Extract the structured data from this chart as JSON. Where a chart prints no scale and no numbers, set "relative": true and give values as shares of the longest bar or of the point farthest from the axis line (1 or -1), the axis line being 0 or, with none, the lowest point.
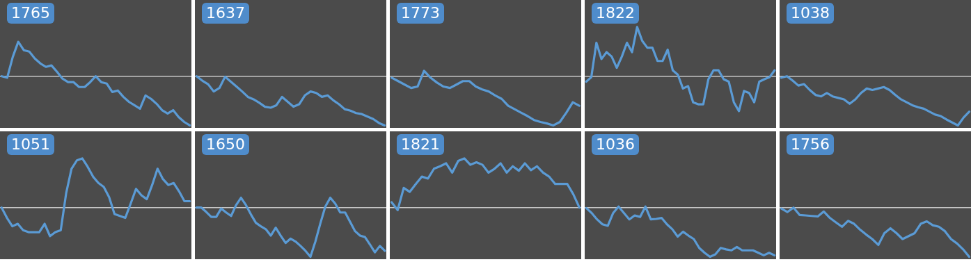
{
  "chart_data": [
    {
      "type": "line",
      "title": "1765",
      "relative": true,
      "ref_lines": [
        {
          "axis": "y",
          "value": 0,
          "color": "#c8c8c8"
        }
      ],
      "categories": [
        null,
        null,
        null,
        null,
        null,
        null,
        null,
        null,
        null,
        null,
        null,
        null,
        null,
        null,
        null,
        null,
        null,
        null,
        null,
        null,
        null,
        null,
        null,
        null,
        null,
        null,
        null,
        null,
        null,
        null,
        null,
        null,
        null,
        null,
        null
      ],
      "series": [
        {
          "color": "#5b9bd5",
          "values": [
            0,
            -0.03,
            0.39,
            0.7,
            0.53,
            0.5,
            0.36,
            0.26,
            0.19,
            0.22,
            0.09,
            -0.05,
            -0.12,
            -0.12,
            -0.22,
            -0.22,
            -0.12,
            0,
            -0.12,
            -0.15,
            -0.32,
            -0.29,
            -0.42,
            -0.52,
            -0.59,
            -0.66,
            -0.39,
            -0.46,
            -0.56,
            -0.69,
            -0.76,
            -0.69,
            -0.83,
            -0.93,
            -1
          ]
        }
      ]
    },
    {
      "type": "line",
      "title": "1637",
      "relative": true,
      "ref_lines": [
        {
          "axis": "y",
          "value": 0,
          "color": "#c8c8c8"
        }
      ],
      "categories": [
        null,
        null,
        null,
        null,
        null,
        null,
        null,
        null,
        null,
        null,
        null,
        null,
        null,
        null,
        null,
        null,
        null,
        null,
        null,
        null,
        null,
        null,
        null,
        null,
        null,
        null,
        null,
        null,
        null,
        null,
        null,
        null,
        null,
        null
      ],
      "series": [
        {
          "color": "#5b9bd5",
          "values": [
            0,
            -0.09,
            -0.16,
            -0.31,
            -0.24,
            -0.01,
            -0.11,
            -0.21,
            -0.31,
            -0.42,
            -0.47,
            -0.54,
            -0.62,
            -0.64,
            -0.59,
            -0.42,
            -0.52,
            -0.62,
            -0.57,
            -0.39,
            -0.31,
            -0.34,
            -0.42,
            -0.39,
            -0.49,
            -0.57,
            -0.67,
            -0.7,
            -0.75,
            -0.77,
            -0.82,
            -0.87,
            -0.95,
            -1
          ]
        }
      ]
    },
    {
      "type": "line",
      "title": "1773",
      "relative": true,
      "ref_lines": [
        {
          "axis": "y",
          "value": 0,
          "color": "#c8c8c8"
        }
      ],
      "categories": [
        null,
        null,
        null,
        null,
        null,
        null,
        null,
        null,
        null,
        null,
        null,
        null,
        null,
        null,
        null,
        null,
        null,
        null,
        null,
        null,
        null,
        null,
        null,
        null,
        null,
        null,
        null,
        null,
        null,
        null
      ],
      "series": [
        {
          "color": "#5b9bd5",
          "values": [
            -0.03,
            -0.1,
            -0.17,
            -0.24,
            -0.21,
            0.11,
            -0.03,
            -0.13,
            -0.21,
            -0.24,
            -0.17,
            -0.1,
            -0.1,
            -0.21,
            -0.27,
            -0.31,
            -0.39,
            -0.46,
            -0.6,
            -0.67,
            -0.74,
            -0.81,
            -0.89,
            -0.93,
            -0.96,
            -1,
            -0.93,
            -0.74,
            -0.53,
            -0.6
          ]
        }
      ]
    },
    {
      "type": "line",
      "title": "1822",
      "relative": true,
      "ref_lines": [
        {
          "axis": "y",
          "value": 0,
          "color": "#c8c8c8"
        }
      ],
      "categories": [
        null,
        null,
        null,
        null,
        null,
        null,
        null,
        null,
        null,
        null,
        null,
        null,
        null,
        null,
        null,
        null,
        null,
        null,
        null,
        null,
        null,
        null,
        null,
        null,
        null,
        null,
        null,
        null,
        null,
        null,
        null,
        null,
        null,
        null,
        null,
        null,
        null,
        null
      ],
      "series": [
        {
          "color": "#5b9bd5",
          "values": [
            -0.11,
            -0.02,
            0.68,
            0.35,
            0.49,
            0.4,
            0.17,
            0.4,
            0.68,
            0.49,
            1,
            0.72,
            0.58,
            0.58,
            0.31,
            0.31,
            0.54,
            0.12,
            0.03,
            -0.25,
            -0.2,
            -0.53,
            -0.57,
            -0.57,
            -0.06,
            0.12,
            0.12,
            -0.06,
            -0.11,
            -0.53,
            -0.71,
            -0.3,
            -0.34,
            -0.53,
            -0.11,
            -0.06,
            -0.02,
            0.12
          ]
        }
      ]
    },
    {
      "type": "line",
      "title": "1038",
      "relative": true,
      "ref_lines": [
        {
          "axis": "y",
          "value": 0,
          "color": "#c8c8c8"
        }
      ],
      "categories": [
        null,
        null,
        null,
        null,
        null,
        null,
        null,
        null,
        null,
        null,
        null,
        null,
        null,
        null,
        null,
        null,
        null,
        null,
        null,
        null,
        null,
        null,
        null,
        null,
        null,
        null,
        null,
        null,
        null,
        null,
        null,
        null,
        null,
        null
      ],
      "series": [
        {
          "color": "#5b9bd5",
          "values": [
            -0.03,
            0,
            -0.09,
            -0.19,
            -0.16,
            -0.28,
            -0.38,
            -0.41,
            -0.34,
            -0.41,
            -0.44,
            -0.47,
            -0.56,
            -0.47,
            -0.34,
            -0.25,
            -0.28,
            -0.25,
            -0.22,
            -0.28,
            -0.38,
            -0.47,
            -0.53,
            -0.59,
            -0.63,
            -0.66,
            -0.72,
            -0.78,
            -0.81,
            -0.88,
            -0.94,
            -1,
            -0.84,
            -0.72
          ]
        }
      ]
    },
    {
      "type": "line",
      "title": "1051",
      "relative": true,
      "ref_lines": [
        {
          "axis": "y",
          "value": 0,
          "color": "#c8c8c8"
        }
      ],
      "categories": [
        null,
        null,
        null,
        null,
        null,
        null,
        null,
        null,
        null,
        null,
        null,
        null,
        null,
        null,
        null,
        null,
        null,
        null,
        null,
        null,
        null,
        null,
        null,
        null,
        null,
        null,
        null,
        null,
        null,
        null,
        null,
        null,
        null,
        null,
        null,
        null
      ],
      "series": [
        {
          "color": "#5b9bd5",
          "values": [
            0,
            -0.21,
            -0.38,
            -0.33,
            -0.46,
            -0.5,
            -0.5,
            -0.5,
            -0.33,
            -0.58,
            -0.5,
            -0.46,
            0.29,
            0.79,
            0.96,
            1,
            0.83,
            0.63,
            0.5,
            0.42,
            0.21,
            -0.13,
            -0.17,
            -0.21,
            0.08,
            0.38,
            0.25,
            0.17,
            0.46,
            0.79,
            0.58,
            0.46,
            0.5,
            0.33,
            0.13,
            0.13
          ]
        }
      ]
    },
    {
      "type": "line",
      "title": "1650",
      "relative": true,
      "ref_lines": [
        {
          "axis": "y",
          "value": 0,
          "color": "#c8c8c8"
        }
      ],
      "categories": [
        null,
        null,
        null,
        null,
        null,
        null,
        null,
        null,
        null,
        null,
        null,
        null,
        null,
        null,
        null,
        null,
        null,
        null,
        null,
        null,
        null,
        null,
        null,
        null,
        null,
        null,
        null,
        null,
        null,
        null,
        null,
        null,
        null,
        null,
        null,
        null,
        null,
        null,
        null
      ],
      "series": [
        {
          "color": "#5b9bd5",
          "values": [
            0,
            0,
            -0.09,
            -0.19,
            -0.19,
            -0.02,
            -0.1,
            -0.17,
            0.05,
            0.2,
            0.05,
            -0.14,
            -0.31,
            -0.38,
            -0.44,
            -0.57,
            -0.41,
            -0.57,
            -0.72,
            -0.63,
            -0.69,
            -0.78,
            -0.88,
            -1,
            -0.69,
            -0.32,
            0.02,
            0.2,
            0.08,
            -0.1,
            -0.1,
            -0.29,
            -0.48,
            -0.57,
            -0.6,
            -0.75,
            -0.91,
            -0.78,
            -0.88
          ]
        }
      ]
    },
    {
      "type": "line",
      "title": "1821",
      "relative": true,
      "ref_lines": [
        {
          "axis": "y",
          "value": 0,
          "color": "#c8c8c8"
        }
      ],
      "categories": [
        null,
        null,
        null,
        null,
        null,
        null,
        null,
        null,
        null,
        null,
        null,
        null,
        null,
        null,
        null,
        null,
        null,
        null,
        null,
        null,
        null,
        null,
        null,
        null,
        null,
        null,
        null,
        null,
        null,
        null,
        null,
        null
      ],
      "series": [
        {
          "color": "#5b9bd5",
          "values": [
            0.11,
            -0.05,
            0.4,
            0.32,
            0.48,
            0.63,
            0.59,
            0.79,
            0.84,
            0.9,
            0.71,
            0.95,
            1,
            0.87,
            0.92,
            0.87,
            0.71,
            0.79,
            0.9,
            0.71,
            0.84,
            0.75,
            0.9,
            0.76,
            0.84,
            0.71,
            0.63,
            0.48,
            0.48,
            0.48,
            0.27,
            0
          ]
        }
      ]
    },
    {
      "type": "line",
      "title": "1036",
      "relative": true,
      "ref_lines": [
        {
          "axis": "y",
          "value": 0,
          "color": "#c8c8c8"
        }
      ],
      "categories": [
        null,
        null,
        null,
        null,
        null,
        null,
        null,
        null,
        null,
        null,
        null,
        null,
        null,
        null,
        null,
        null,
        null,
        null,
        null,
        null,
        null,
        null,
        null,
        null,
        null,
        null,
        null,
        null,
        null,
        null,
        null,
        null,
        null,
        null,
        null,
        null
      ],
      "series": [
        {
          "color": "#5b9bd5",
          "values": [
            -0.01,
            -0.11,
            -0.24,
            -0.34,
            -0.37,
            -0.11,
            0.02,
            -0.11,
            -0.24,
            -0.16,
            -0.19,
            0.02,
            -0.24,
            -0.23,
            -0.21,
            -0.34,
            -0.44,
            -0.59,
            -0.49,
            -0.57,
            -0.64,
            -0.82,
            -0.92,
            -1,
            -0.95,
            -0.82,
            -0.85,
            -0.87,
            -0.8,
            -0.87,
            -0.87,
            -0.87,
            -0.92,
            -0.97,
            -0.92,
            -0.97
          ]
        }
      ]
    },
    {
      "type": "line",
      "title": "1756",
      "relative": true,
      "ref_lines": [
        {
          "axis": "y",
          "value": 0,
          "color": "#c8c8c8"
        }
      ],
      "categories": [
        null,
        null,
        null,
        null,
        null,
        null,
        null,
        null,
        null,
        null,
        null,
        null,
        null,
        null,
        null,
        null,
        null,
        null,
        null,
        null,
        null,
        null,
        null,
        null,
        null,
        null,
        null,
        null,
        null,
        null,
        null,
        null
      ],
      "series": [
        {
          "color": "#5b9bd5",
          "values": [
            -0.02,
            -0.09,
            0,
            -0.15,
            -0.16,
            -0.17,
            -0.18,
            -0.08,
            -0.21,
            -0.3,
            -0.39,
            -0.27,
            -0.33,
            -0.45,
            -0.55,
            -0.64,
            -0.76,
            -0.52,
            -0.42,
            -0.52,
            -0.64,
            -0.58,
            -0.52,
            -0.33,
            -0.28,
            -0.36,
            -0.39,
            -0.48,
            -0.64,
            -0.73,
            -0.85,
            -1
          ]
        }
      ]
    }
  ]
}
